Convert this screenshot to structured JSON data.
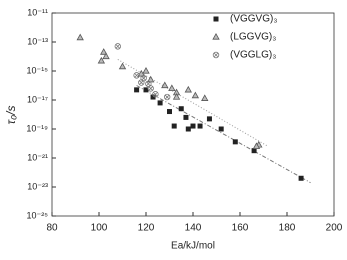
{
  "chart_data": {
    "type": "scatter",
    "ylog": true,
    "xlabel": "Ea/kJ/mol",
    "ylabel": "τ₀/s",
    "xlim": [
      80,
      200
    ],
    "xticks": [
      80,
      100,
      120,
      140,
      160,
      180,
      200
    ],
    "ylim": [
      1e-25,
      1e-11
    ],
    "yticks": [
      {
        "value": 1e-11,
        "label": "10⁻¹¹"
      },
      {
        "value": 1e-13,
        "label": "10⁻¹³"
      },
      {
        "value": 1e-15,
        "label": "10⁻¹⁵"
      },
      {
        "value": 1e-17,
        "label": "10⁻¹⁷"
      },
      {
        "value": 1e-19,
        "label": "10⁻¹⁹"
      },
      {
        "value": 1e-21,
        "label": "10⁻²¹"
      },
      {
        "value": 1e-23,
        "label": "10⁻²³"
      },
      {
        "value": 1e-25,
        "label": "10⁻²⁵"
      }
    ],
    "legend": "top-right",
    "series": [
      {
        "name": "(VGGVG)₃",
        "marker": "square",
        "color": "#222222",
        "x": [
          116,
          120,
          123,
          126,
          130,
          132,
          135,
          137,
          140,
          143,
          147,
          152,
          158,
          166,
          186,
          138
        ],
        "values": [
          5e-17,
          5e-17,
          1.6e-17,
          6.3e-18,
          1.6e-18,
          1.6e-19,
          2.5e-18,
          6.3e-19,
          1.6e-19,
          1.6e-19,
          5e-19,
          1e-19,
          1.3e-20,
          3.2e-21,
          4e-23,
          1e-19
        ]
      },
      {
        "name": "(LGGVG)₃",
        "marker": "triangle",
        "color": "#555555",
        "x": [
          92,
          102,
          103,
          101,
          110,
          118,
          120,
          122,
          128,
          131,
          133,
          138,
          141,
          145,
          133,
          168,
          167
        ],
        "values": [
          2e-13,
          2e-14,
          1e-14,
          5e-15,
          2e-15,
          6.3e-16,
          1e-15,
          2.5e-16,
          1e-16,
          6.3e-17,
          3.2e-17,
          5e-17,
          2e-17,
          1.3e-17,
          1.6e-17,
          8e-21,
          6.3e-21
        ]
      },
      {
        "name": "(VGGLG)₃",
        "marker": "circle-cross",
        "color": "#777777",
        "x": [
          108,
          116,
          118,
          119,
          121,
          122,
          124,
          129
        ],
        "values": [
          5e-14,
          5e-16,
          1.6e-16,
          3.2e-16,
          1.3e-16,
          6.3e-17,
          2.5e-17,
          1.6e-17
        ]
      }
    ],
    "fit_lines": [
      {
        "color": "#999999",
        "dash": "1 2",
        "x": [
          108,
          172
        ],
        "values": [
          6.3e-15,
          6.3e-21
        ]
      },
      {
        "color": "#777777",
        "dash": "4 2 1 2",
        "x": [
          116,
          190
        ],
        "values": [
          1e-16,
          2e-23
        ]
      }
    ]
  }
}
